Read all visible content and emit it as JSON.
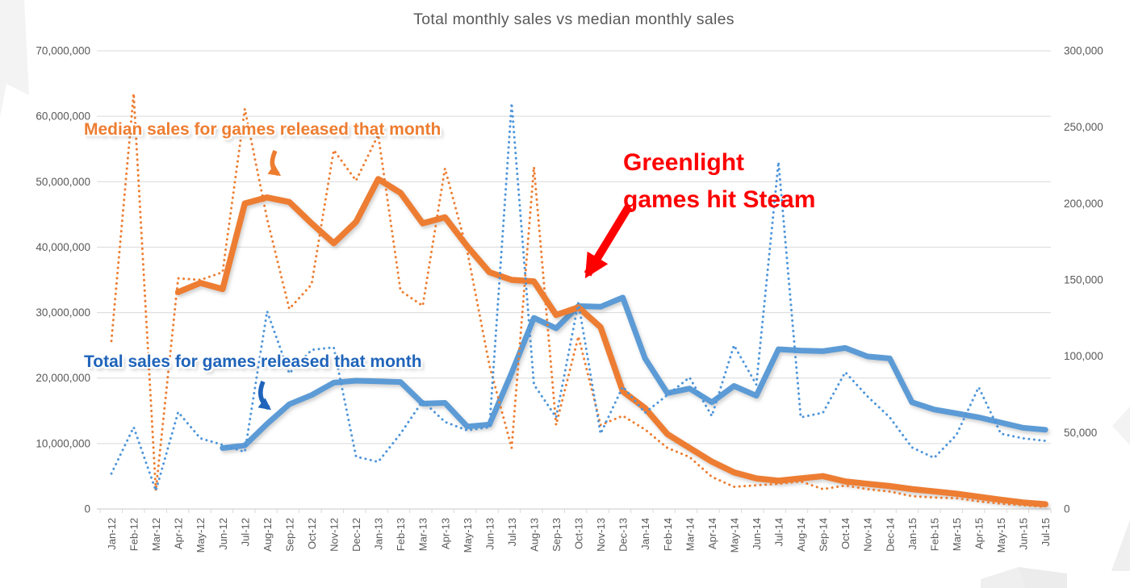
{
  "title": "Total monthly sales vs median monthly sales",
  "annotations": {
    "median_label": "Median sales for games released that month",
    "total_label": "Total sales for games released that month",
    "greenlight_line1": "Greenlight",
    "greenlight_line2": "games hit Steam"
  },
  "colors": {
    "orange_series": "#ED7D31",
    "blue_series": "#5B9BD5",
    "dotted_blue_series": "#4E95D9",
    "median_label_text": "#ED7D31",
    "total_label_text": "#1F64BA",
    "greenlight_text": "#FF0000",
    "axis_text": "#595959",
    "gridline": "#D9D9D9",
    "decoration": "#F2F2F2"
  },
  "chart_data": {
    "type": "line",
    "title": "Total monthly sales vs median monthly sales",
    "grid": true,
    "legend_position": "none",
    "categories": [
      "Jan-12",
      "Feb-12",
      "Mar-12",
      "Apr-12",
      "May-12",
      "Jun-12",
      "Jul-12",
      "Aug-12",
      "Sep-12",
      "Oct-12",
      "Nov-12",
      "Dec-12",
      "Jan-13",
      "Feb-13",
      "Mar-13",
      "Apr-13",
      "May-13",
      "Jun-13",
      "Jul-13",
      "Aug-13",
      "Sep-13",
      "Oct-13",
      "Nov-13",
      "Dec-13",
      "Jan-14",
      "Feb-14",
      "Mar-14",
      "Apr-14",
      "May-14",
      "Jun-14",
      "Jul-14",
      "Aug-14",
      "Sep-14",
      "Oct-14",
      "Nov-14",
      "Dec-14",
      "Jan-15",
      "Feb-15",
      "Mar-15",
      "Apr-15",
      "May-15",
      "Jun-15",
      "Jul-15"
    ],
    "left_axis": {
      "title": "",
      "ticks": [
        "70,000,000",
        "60,000,000",
        "50,000,000",
        "40,000,000",
        "30,000,000",
        "20,000,000",
        "10,000,000",
        "0"
      ],
      "range_millions": [
        0,
        70
      ]
    },
    "right_axis": {
      "title": "",
      "ticks": [
        "300,000",
        "250,000",
        "200,000",
        "150,000",
        "100,000",
        "50,000",
        "0"
      ],
      "range_thousands": [
        0,
        300
      ]
    },
    "series": [
      {
        "id": "total-smoothed",
        "name": "Total sales for games released that month (smoothed)",
        "axis": "left",
        "unit": "millions",
        "style": "solid",
        "color": "#5B9BD5",
        "width": 7,
        "values": [
          null,
          null,
          null,
          null,
          null,
          9.3,
          9.7,
          13.0,
          16.0,
          17.4,
          19.3,
          19.6,
          19.5,
          19.4,
          16.1,
          16.2,
          12.6,
          12.9,
          20.8,
          29.2,
          27.6,
          31.0,
          30.9,
          32.3,
          23.0,
          17.7,
          18.4,
          16.3,
          18.8,
          17.3,
          24.4,
          24.2,
          24.1,
          24.6,
          23.3,
          23.0,
          16.3,
          15.2,
          14.6,
          14.0,
          13.2,
          12.4,
          12.1
        ]
      },
      {
        "id": "median-smoothed",
        "name": "Median sales for games released that month (smoothed)",
        "axis": "right",
        "unit": "thousands",
        "style": "solid",
        "color": "#ED7D31",
        "width": 7.5,
        "values": [
          null,
          null,
          null,
          142,
          148,
          144,
          200,
          204,
          201,
          187,
          174,
          188,
          216,
          207,
          187,
          191,
          172,
          155,
          150,
          149,
          127,
          132,
          119,
          77,
          66,
          49,
          40,
          31,
          24,
          20,
          18.5,
          20,
          21.5,
          18,
          16.5,
          15,
          13,
          11.5,
          10,
          8,
          6,
          4.2,
          3.1
        ]
      },
      {
        "id": "median-monthly",
        "name": "Median sales for games released that month (monthly)",
        "axis": "right",
        "unit": "thousands",
        "style": "dotted",
        "color": "#ED7D31",
        "width": 3,
        "values": [
          110,
          272,
          12,
          151,
          150,
          155,
          262,
          190,
          131,
          147,
          235,
          215,
          245,
          143,
          133,
          223,
          169,
          94,
          40,
          224,
          55,
          113,
          55,
          61,
          52,
          40,
          34,
          21,
          14.5,
          15.5,
          16.5,
          18,
          13,
          15.3,
          13,
          11.4,
          8.4,
          7.5,
          7,
          5,
          3.5,
          2.5,
          1.3
        ]
      },
      {
        "id": "total-monthly",
        "name": "Total sales for games released that month (monthly)",
        "axis": "left",
        "unit": "millions",
        "style": "dotted",
        "color": "#4E95D9",
        "width": 3,
        "values": [
          5.4,
          12.5,
          2.8,
          14.8,
          10.8,
          9.8,
          8.7,
          30.2,
          20.7,
          24.3,
          24.7,
          8.0,
          7.2,
          11.5,
          16.5,
          13.3,
          12.0,
          12.5,
          62.0,
          19.0,
          14.0,
          31.5,
          11.5,
          18.7,
          14.7,
          17.4,
          20.1,
          14.2,
          25.0,
          19.0,
          53.0,
          14.0,
          14.7,
          20.9,
          17.2,
          14.0,
          9.4,
          7.8,
          11.3,
          18.6,
          11.5,
          10.8,
          10.4
        ]
      }
    ]
  }
}
